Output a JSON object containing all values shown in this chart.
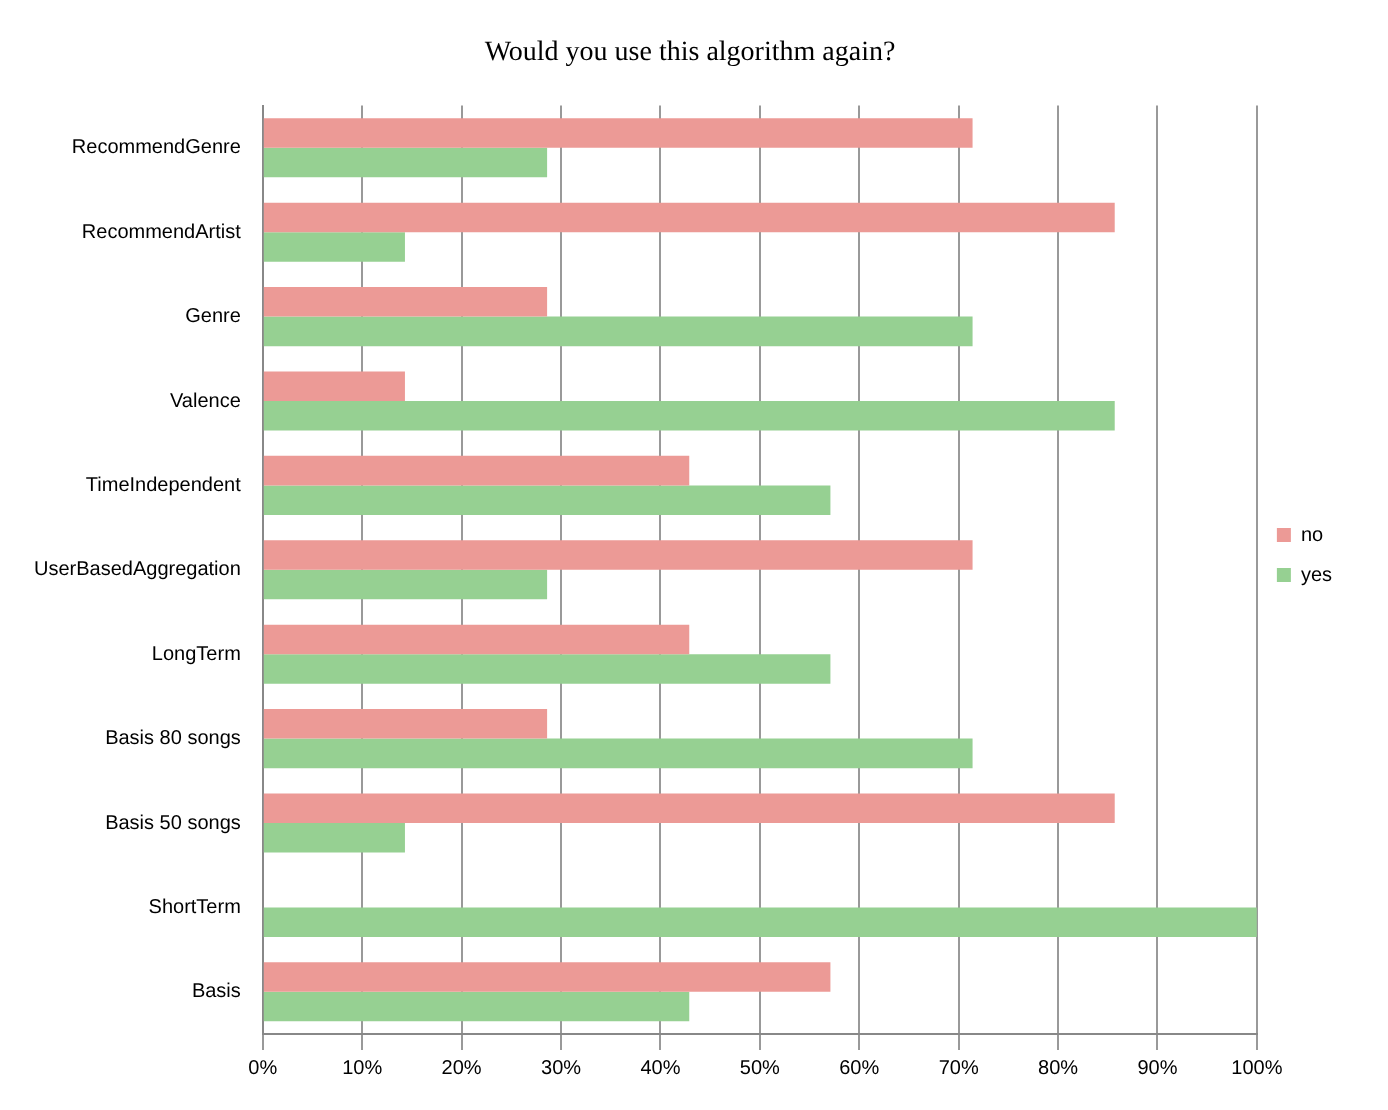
{
  "chart_data": {
    "type": "bar",
    "orientation": "horizontal",
    "title": "Would you use this algorithm again?",
    "categories": [
      "RecommendGenre",
      "RecommendArtist",
      "Genre",
      "Valence",
      "TimeIndependent",
      "UserBasedAggregation",
      "LongTerm",
      "Basis 80 songs",
      "Basis 50 songs",
      "ShortTerm",
      "Basis"
    ],
    "series": [
      {
        "name": "no",
        "color": "#ec9a96",
        "values": [
          71.4,
          85.7,
          28.6,
          14.3,
          42.9,
          71.4,
          42.9,
          28.6,
          85.7,
          0,
          57.1
        ]
      },
      {
        "name": "yes",
        "color": "#96d092",
        "values": [
          28.6,
          14.3,
          71.4,
          85.7,
          57.1,
          28.6,
          57.1,
          71.4,
          14.3,
          100,
          42.9
        ]
      }
    ],
    "xlim": [
      0,
      100
    ],
    "xticks": [
      {
        "value": 0,
        "label": "0%"
      },
      {
        "value": 10,
        "label": "10%"
      },
      {
        "value": 20,
        "label": "20%"
      },
      {
        "value": 30,
        "label": "30%"
      },
      {
        "value": 40,
        "label": "40%"
      },
      {
        "value": 50,
        "label": "50%"
      },
      {
        "value": 60,
        "label": "60%"
      },
      {
        "value": 70,
        "label": "70%"
      },
      {
        "value": 80,
        "label": "80%"
      },
      {
        "value": 90,
        "label": "90%"
      },
      {
        "value": 100,
        "label": "100%"
      }
    ],
    "grid": "x",
    "legend": "right"
  }
}
